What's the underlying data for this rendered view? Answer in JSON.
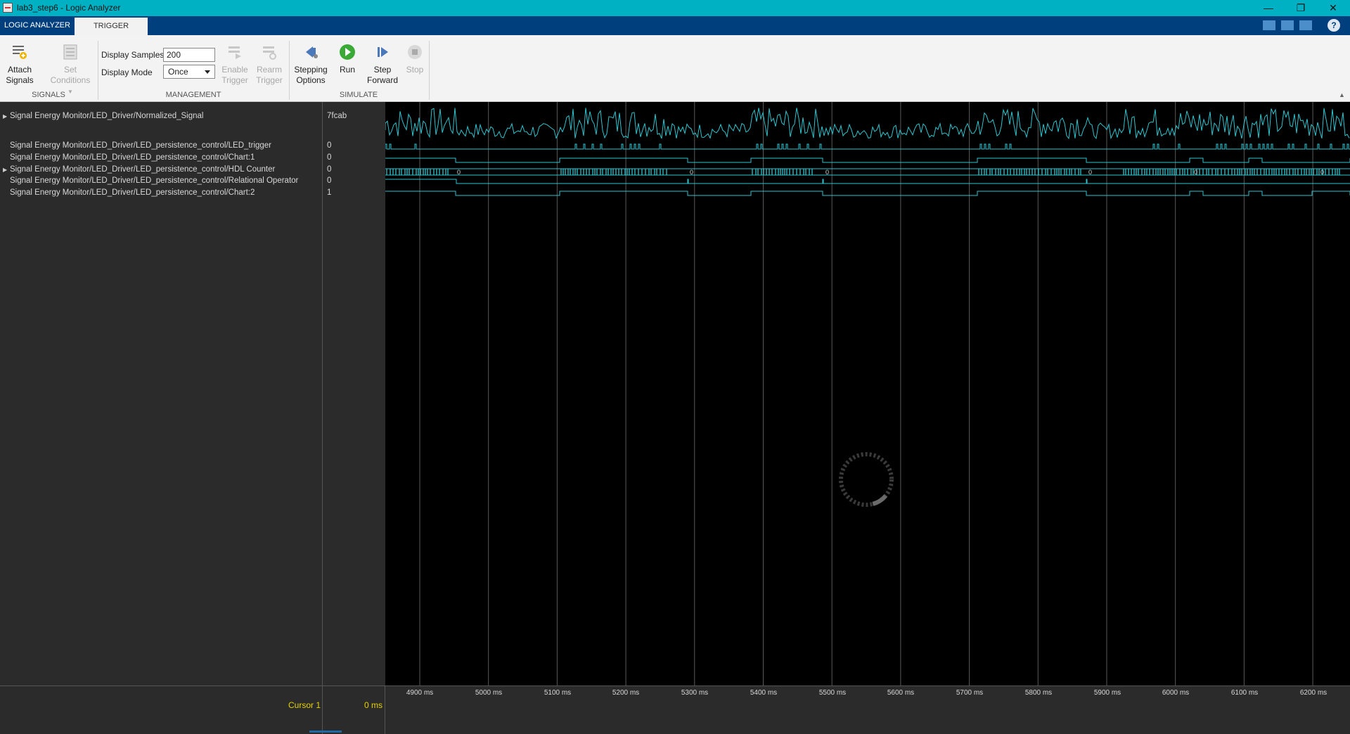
{
  "window": {
    "title": "lab3_step6 - Logic Analyzer",
    "minimize": "—",
    "restore": "❐",
    "close": "✕"
  },
  "tabs": [
    {
      "label": "LOGIC ANALYZER"
    },
    {
      "label": "TRIGGER"
    }
  ],
  "help_label": "?",
  "toolstrip": {
    "attach_signals": "Attach Signals",
    "set_conditions": "Set Conditions",
    "display_samples_label": "Display Samples",
    "display_samples_value": "200",
    "display_mode_label": "Display Mode",
    "display_mode_value": "Once",
    "enable_trigger": "Enable Trigger",
    "rearm_trigger": "Rearm Trigger",
    "stepping_options": "Stepping Options",
    "run": "Run",
    "step_forward": "Step Forward",
    "stop": "Stop",
    "groups": [
      "SIGNALS",
      "MANAGEMENT",
      "SIMULATE"
    ]
  },
  "signals": [
    {
      "name": "Signal Energy Monitor/LED_Driver/Normalized_Signal",
      "value": "7fcab",
      "expandable": true
    },
    {
      "name": "Signal Energy Monitor/LED_Driver/LED_persistence_control/LED_trigger",
      "value": "0",
      "expandable": false
    },
    {
      "name": "Signal Energy Monitor/LED_Driver/LED_persistence_control/Chart:1",
      "value": "0",
      "expandable": false
    },
    {
      "name": "Signal Energy Monitor/LED_Driver/LED_persistence_control/HDL Counter",
      "value": "0",
      "expandable": true
    },
    {
      "name": "Signal Energy Monitor/LED_Driver/LED_persistence_control/Relational Operator",
      "value": "0",
      "expandable": false
    },
    {
      "name": "Signal Energy Monitor/LED_Driver/LED_persistence_control/Chart:2",
      "value": "1",
      "expandable": false
    }
  ],
  "counter_reset_label": "0",
  "time_axis": {
    "ticks": [
      "4900 ms",
      "5000 ms",
      "5100 ms",
      "5200 ms",
      "5300 ms",
      "5400 ms",
      "5500 ms",
      "5600 ms",
      "5700 ms",
      "5800 ms",
      "5900 ms",
      "6000 ms",
      "6100 ms",
      "6200 ms"
    ]
  },
  "cursor": {
    "label": "Cursor 1",
    "value": "0 ms"
  },
  "colors": {
    "trace": "#2ec4cf",
    "cursor": "#e6d300",
    "accent": "#00b1c4"
  }
}
